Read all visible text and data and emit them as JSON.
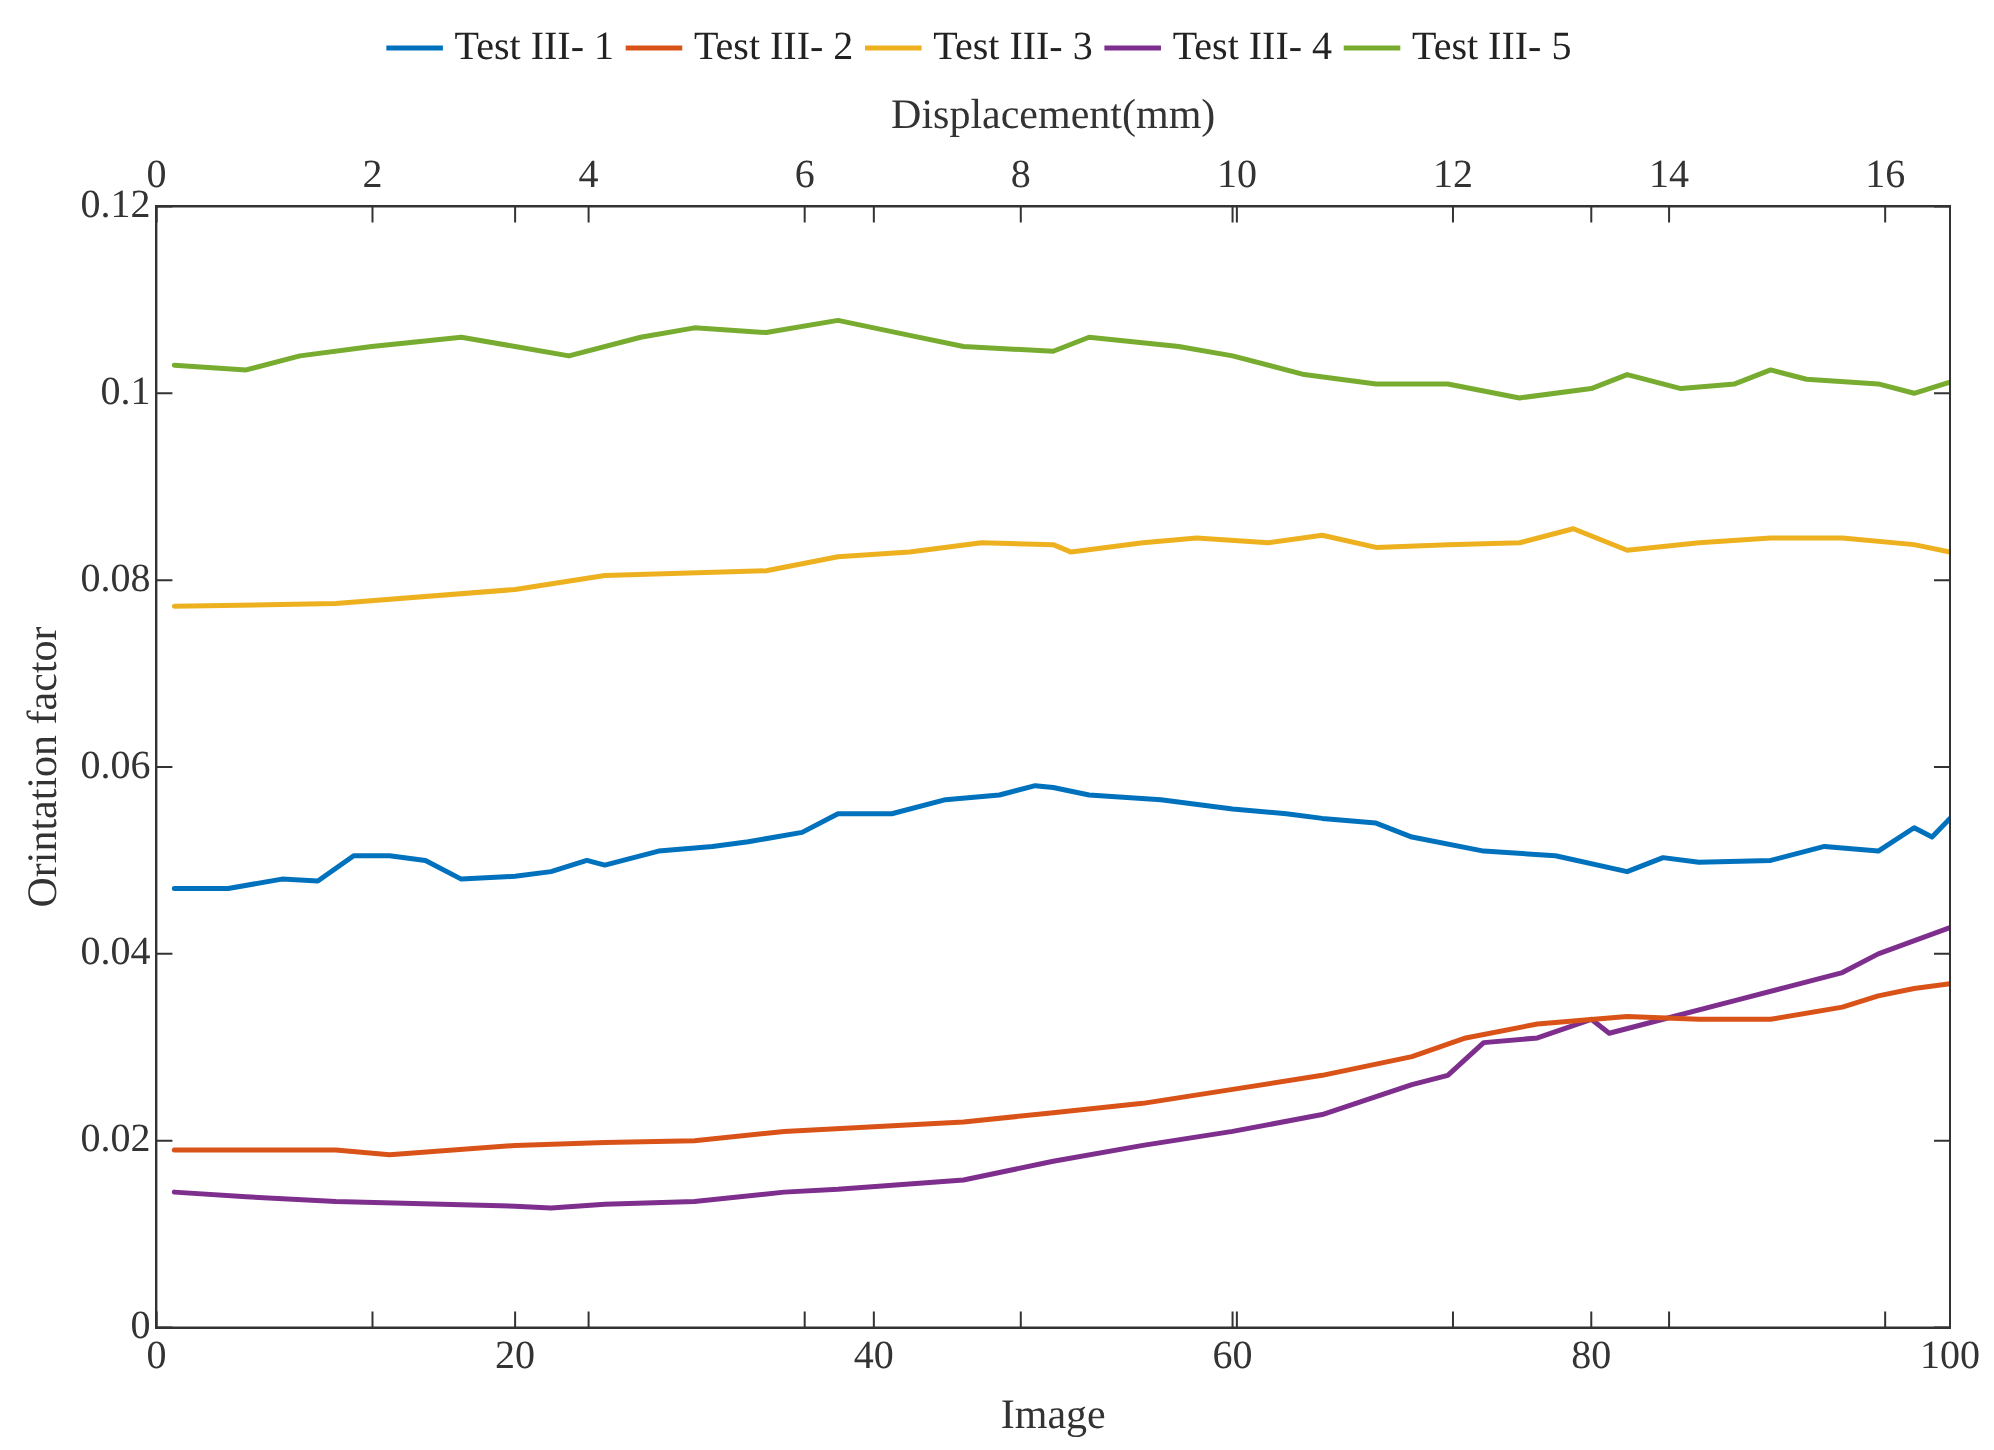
{
  "chart_data": {
    "type": "line",
    "xlabel": "Image",
    "ylabel": "Orintation factor",
    "x2label": "Displacement(mm)",
    "xlim": [
      0,
      100
    ],
    "xticks": [
      0,
      20,
      40,
      60,
      80,
      100
    ],
    "x2lim": [
      0,
      16.6
    ],
    "x2ticks": [
      0,
      2,
      4,
      6,
      8,
      10,
      12,
      14,
      16
    ],
    "ylim": [
      0,
      0.12
    ],
    "yticks": [
      0,
      0.02,
      0.04,
      0.06,
      0.08,
      0.1,
      0.12
    ],
    "grid": false,
    "legend": "top",
    "marker": "none",
    "line_style": "solid",
    "series": [
      {
        "name": "Test III- 1",
        "color": "#0072bd",
        "x": [
          1,
          4,
          7,
          9,
          11,
          13,
          15,
          17,
          20,
          22,
          24,
          25,
          28,
          31,
          33,
          36,
          38,
          41,
          44,
          47,
          49,
          50,
          52,
          56,
          60,
          63,
          65,
          68,
          70,
          74,
          78,
          82,
          84,
          86,
          90,
          93,
          96,
          98,
          99,
          100
        ],
        "values": [
          0.047,
          0.047,
          0.048,
          0.0478,
          0.0505,
          0.0505,
          0.05,
          0.048,
          0.0483,
          0.0488,
          0.05,
          0.0495,
          0.051,
          0.0515,
          0.052,
          0.053,
          0.055,
          0.055,
          0.0565,
          0.057,
          0.058,
          0.0578,
          0.057,
          0.0565,
          0.0555,
          0.055,
          0.0545,
          0.054,
          0.0525,
          0.051,
          0.0505,
          0.0488,
          0.0503,
          0.0498,
          0.05,
          0.0515,
          0.051,
          0.0535,
          0.0525,
          0.0545
        ]
      },
      {
        "name": "Test III- 2",
        "color": "#d95319",
        "x": [
          1,
          10,
          13,
          20,
          25,
          30,
          35,
          40,
          45,
          50,
          55,
          60,
          65,
          70,
          73,
          77,
          82,
          86,
          90,
          94,
          96,
          98,
          100
        ],
        "values": [
          0.019,
          0.019,
          0.0185,
          0.0195,
          0.0198,
          0.02,
          0.021,
          0.0215,
          0.022,
          0.023,
          0.024,
          0.0255,
          0.027,
          0.029,
          0.031,
          0.0325,
          0.0333,
          0.033,
          0.033,
          0.0343,
          0.0355,
          0.0363,
          0.0368
        ]
      },
      {
        "name": "Test III- 3",
        "color": "#edb120",
        "x": [
          1,
          10,
          20,
          25,
          34,
          38,
          42,
          46,
          50,
          51,
          55,
          58,
          62,
          65,
          68,
          72,
          76,
          79,
          82,
          86,
          90,
          94,
          98,
          100
        ],
        "values": [
          0.0772,
          0.0775,
          0.079,
          0.0805,
          0.081,
          0.0825,
          0.083,
          0.084,
          0.0838,
          0.083,
          0.084,
          0.0845,
          0.084,
          0.0848,
          0.0835,
          0.0838,
          0.084,
          0.0855,
          0.0832,
          0.084,
          0.0845,
          0.0845,
          0.0838,
          0.083
        ]
      },
      {
        "name": "Test III- 4",
        "color": "#7e2f8e",
        "x": [
          1,
          5,
          10,
          20,
          22,
          25,
          30,
          35,
          38,
          45,
          50,
          55,
          60,
          65,
          70,
          72,
          74,
          77,
          80,
          81,
          84,
          88,
          91,
          94,
          96,
          100
        ],
        "values": [
          0.0145,
          0.014,
          0.0135,
          0.013,
          0.0128,
          0.0132,
          0.0135,
          0.0145,
          0.0148,
          0.0158,
          0.0178,
          0.0195,
          0.021,
          0.0228,
          0.026,
          0.027,
          0.0305,
          0.031,
          0.033,
          0.0315,
          0.033,
          0.035,
          0.0365,
          0.038,
          0.04,
          0.0428
        ]
      },
      {
        "name": "Test III- 5",
        "color": "#77ac30",
        "x": [
          1,
          5,
          8,
          12,
          17,
          20,
          23,
          27,
          30,
          34,
          38,
          42,
          45,
          50,
          52,
          57,
          60,
          64,
          68,
          72,
          76,
          80,
          82,
          85,
          88,
          90,
          92,
          96,
          98,
          100
        ],
        "values": [
          0.103,
          0.1025,
          0.104,
          0.105,
          0.106,
          0.105,
          0.104,
          0.106,
          0.107,
          0.1065,
          0.1078,
          0.1062,
          0.105,
          0.1045,
          0.106,
          0.105,
          0.104,
          0.102,
          0.101,
          0.101,
          0.0995,
          0.1005,
          0.102,
          0.1005,
          0.101,
          0.1025,
          0.1015,
          0.101,
          0.1,
          0.1012
        ]
      }
    ]
  }
}
